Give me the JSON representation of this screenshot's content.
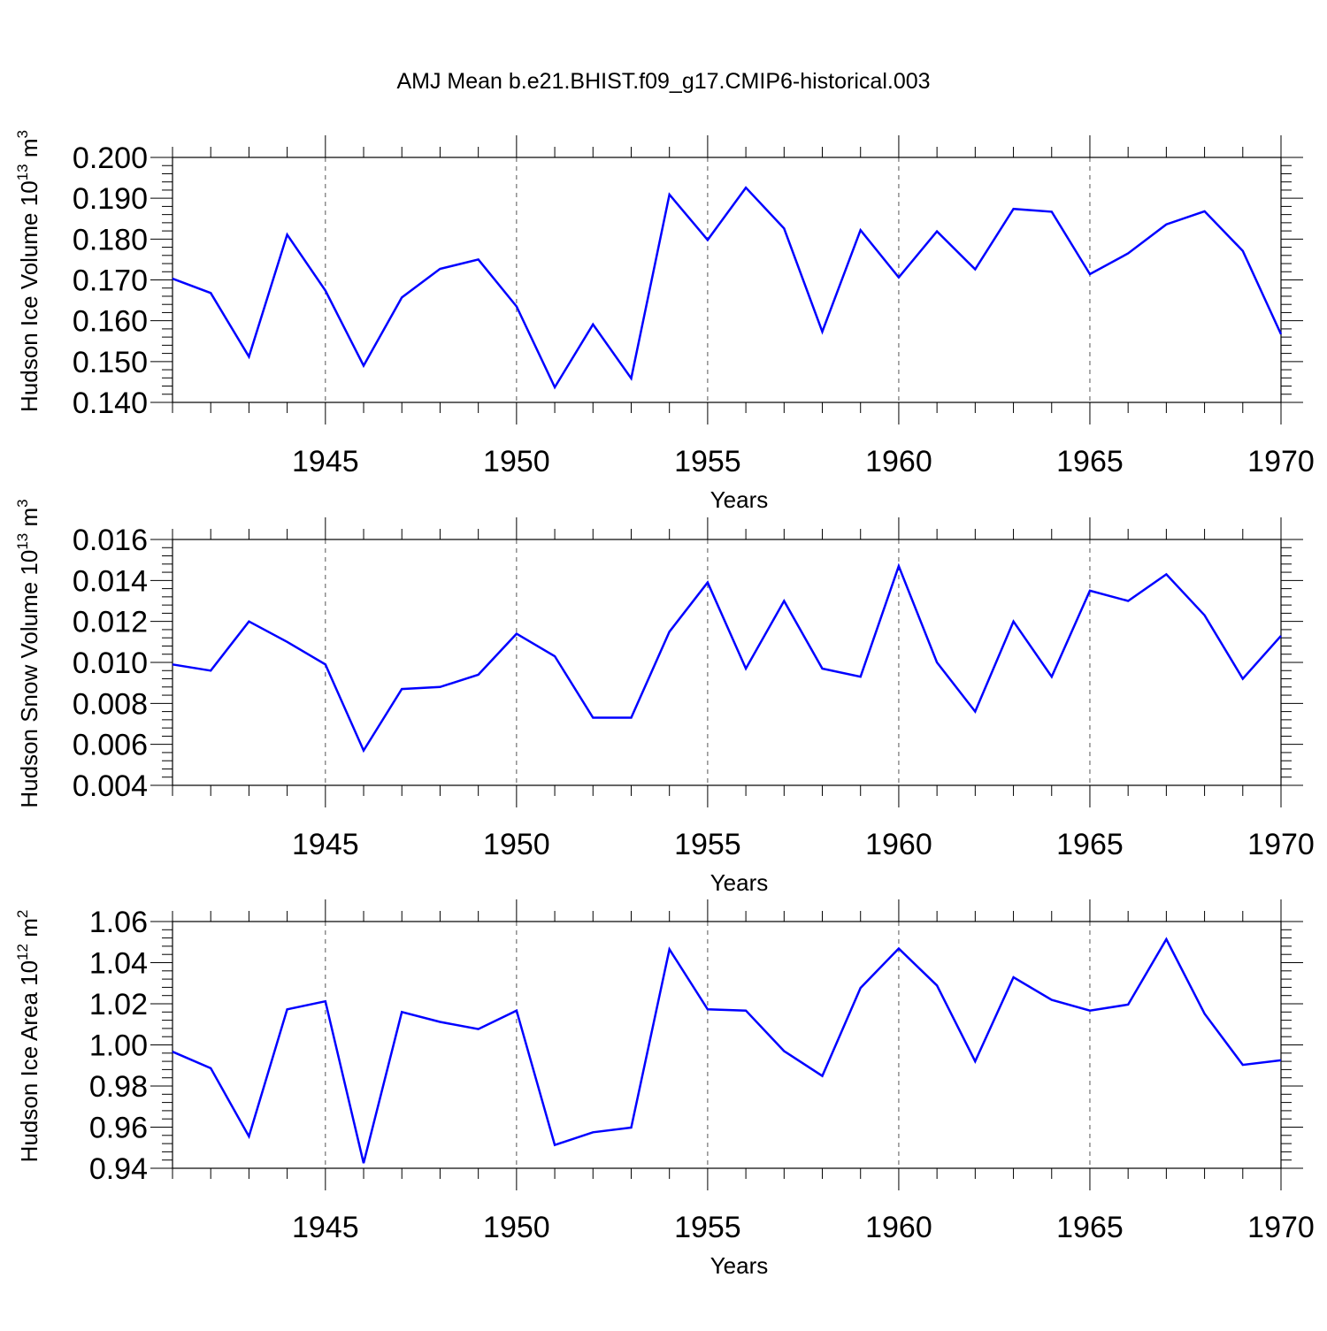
{
  "title": "AMJ Mean b.e21.BHIST.f09_g17.CMIP6-historical.003",
  "colors": {
    "line": "#0000ff",
    "axis": "#000000",
    "grid": "#555555"
  },
  "chart_data": [
    {
      "type": "line",
      "ylabel": {
        "text": "Hudson Ice Volume 10",
        "sup": "13",
        "unit": " m",
        "unit_sup": "3"
      },
      "xlabel": "Years",
      "xlim": [
        1941,
        1970
      ],
      "ylim": [
        0.14,
        0.2
      ],
      "grid": "x-major-dashed",
      "yticks": [
        0.14,
        0.15,
        0.16,
        0.17,
        0.18,
        0.19,
        0.2
      ],
      "ytick_labels": [
        "0.140",
        "0.150",
        "0.160",
        "0.170",
        "0.180",
        "0.190",
        "0.200"
      ],
      "xticks": [
        1945,
        1950,
        1955,
        1960,
        1965,
        1970
      ],
      "xtick_labels": [
        "1945",
        "1950",
        "1955",
        "1960",
        "1965",
        "1970"
      ],
      "x": [
        1941,
        1942,
        1943,
        1944,
        1945,
        1946,
        1947,
        1948,
        1949,
        1950,
        1951,
        1952,
        1953,
        1954,
        1955,
        1956,
        1957,
        1958,
        1959,
        1960,
        1961,
        1962,
        1963,
        1964,
        1965,
        1966,
        1967,
        1968,
        1969,
        1970
      ],
      "series": [
        {
          "values": [
            0.1703,
            0.1668,
            0.1512,
            0.1811,
            0.1674,
            0.149,
            0.1657,
            0.1727,
            0.175,
            0.1635,
            0.1437,
            0.1591,
            0.1459,
            0.1909,
            0.1798,
            0.1926,
            0.1826,
            0.1573,
            0.1822,
            0.1706,
            0.1819,
            0.1726,
            0.1874,
            0.1867,
            0.1714,
            0.1765,
            0.1836,
            0.1868,
            0.1771,
            0.1567
          ]
        }
      ]
    },
    {
      "type": "line",
      "ylabel": {
        "text": "Hudson Snow Volume 10",
        "sup": "13",
        "unit": " m",
        "unit_sup": "3"
      },
      "xlabel": "Years",
      "xlim": [
        1941,
        1970
      ],
      "ylim": [
        0.004,
        0.016
      ],
      "grid": "x-major-dashed",
      "yticks": [
        0.004,
        0.006,
        0.008,
        0.01,
        0.012,
        0.014,
        0.016
      ],
      "ytick_labels": [
        "0.004",
        "0.006",
        "0.008",
        "0.010",
        "0.012",
        "0.014",
        "0.016"
      ],
      "xticks": [
        1945,
        1950,
        1955,
        1960,
        1965,
        1970
      ],
      "xtick_labels": [
        "1945",
        "1950",
        "1955",
        "1960",
        "1965",
        "1970"
      ],
      "x": [
        1941,
        1942,
        1943,
        1944,
        1945,
        1946,
        1947,
        1948,
        1949,
        1950,
        1951,
        1952,
        1953,
        1954,
        1955,
        1956,
        1957,
        1958,
        1959,
        1960,
        1961,
        1962,
        1963,
        1964,
        1965,
        1966,
        1967,
        1968,
        1969,
        1970
      ],
      "series": [
        {
          "values": [
            0.0099,
            0.0096,
            0.012,
            0.011,
            0.0099,
            0.0057,
            0.0087,
            0.0088,
            0.0094,
            0.0114,
            0.0103,
            0.0073,
            0.0073,
            0.0115,
            0.0139,
            0.0097,
            0.013,
            0.0097,
            0.0093,
            0.0147,
            0.01,
            0.0076,
            0.012,
            0.0093,
            0.0135,
            0.013,
            0.0143,
            0.0123,
            0.0092,
            0.0113
          ]
        }
      ]
    },
    {
      "type": "line",
      "ylabel": {
        "text": "Hudson Ice Area 10",
        "sup": "12",
        "unit": " m",
        "unit_sup": "2"
      },
      "xlabel": "Years",
      "xlim": [
        1941,
        1970
      ],
      "ylim": [
        0.94,
        1.06
      ],
      "grid": "x-major-dashed",
      "yticks": [
        0.94,
        0.96,
        0.98,
        1.0,
        1.02,
        1.04,
        1.06
      ],
      "ytick_labels": [
        "0.94",
        "0.96",
        "0.98",
        "1.00",
        "1.02",
        "1.04",
        "1.06"
      ],
      "xticks": [
        1945,
        1950,
        1955,
        1960,
        1965,
        1970
      ],
      "xtick_labels": [
        "1945",
        "1950",
        "1955",
        "1960",
        "1965",
        "1970"
      ],
      "x": [
        1941,
        1942,
        1943,
        1944,
        1945,
        1946,
        1947,
        1948,
        1949,
        1950,
        1951,
        1952,
        1953,
        1954,
        1955,
        1956,
        1957,
        1958,
        1959,
        1960,
        1961,
        1962,
        1963,
        1964,
        1965,
        1966,
        1967,
        1968,
        1969,
        1970
      ],
      "series": [
        {
          "values": [
            0.9967,
            0.9887,
            0.9555,
            1.0173,
            1.0212,
            0.9425,
            1.016,
            1.0112,
            1.0077,
            1.0167,
            0.9513,
            0.9575,
            0.9598,
            1.0465,
            1.0173,
            1.0167,
            0.997,
            0.9849,
            1.0277,
            1.0469,
            1.0289,
            0.992,
            1.0329,
            1.0219,
            1.0167,
            1.0196,
            1.0514,
            1.0152,
            0.9903,
            0.9925
          ]
        }
      ]
    }
  ]
}
